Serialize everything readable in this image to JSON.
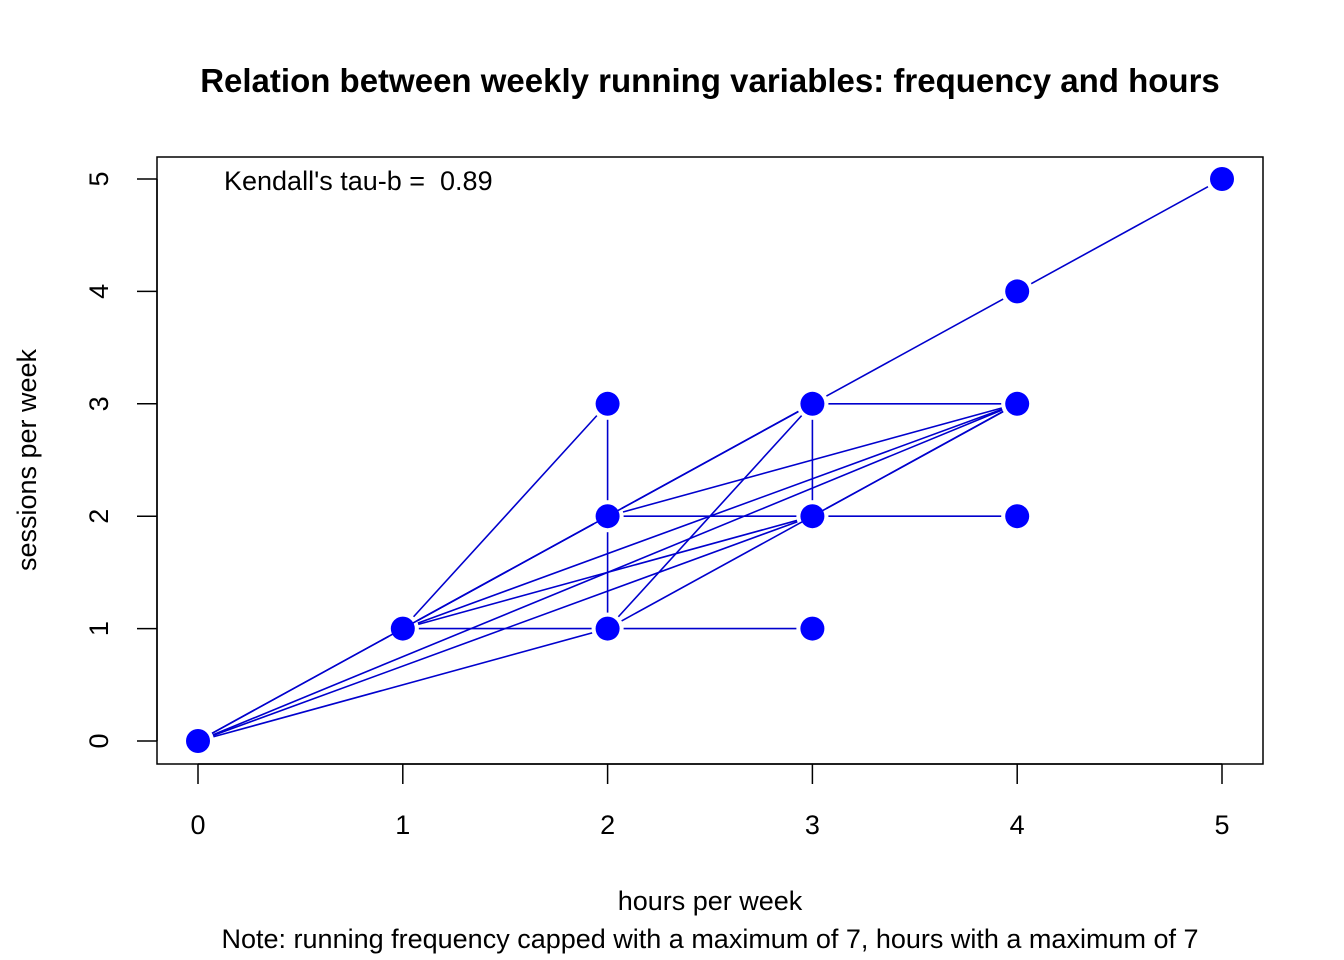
{
  "chart_data": {
    "type": "scatter",
    "title": "Relation between weekly running variables: frequency and hours",
    "xlabel": "hours per week",
    "ylabel": "sessions per week",
    "note": "Note: running frequency capped with a maximum of 7, hours with a maximum of 7",
    "annotation": "Kendall's tau-b =  0.89",
    "xlim": [
      -0.2,
      5.2
    ],
    "ylim": [
      -0.2,
      5.2
    ],
    "x_ticks": [
      "0",
      "1",
      "2",
      "3",
      "4",
      "5"
    ],
    "y_ticks": [
      "0",
      "1",
      "2",
      "3",
      "4",
      "5"
    ],
    "grid": false,
    "colors": {
      "points": "#0000ff",
      "lines": "#0000cd"
    },
    "points": [
      {
        "x": 0,
        "y": 0
      },
      {
        "x": 1,
        "y": 1
      },
      {
        "x": 2,
        "y": 1
      },
      {
        "x": 2,
        "y": 2
      },
      {
        "x": 2,
        "y": 3
      },
      {
        "x": 3,
        "y": 1
      },
      {
        "x": 3,
        "y": 2
      },
      {
        "x": 3,
        "y": 3
      },
      {
        "x": 4,
        "y": 2
      },
      {
        "x": 4,
        "y": 3
      },
      {
        "x": 4,
        "y": 4
      },
      {
        "x": 5,
        "y": 5
      }
    ],
    "connections": [
      [
        [
          0,
          0
        ],
        [
          1,
          1
        ]
      ],
      [
        [
          0,
          0
        ],
        [
          2,
          1
        ]
      ],
      [
        [
          0,
          0
        ],
        [
          2,
          2
        ]
      ],
      [
        [
          0,
          0
        ],
        [
          3,
          2
        ]
      ],
      [
        [
          0,
          0
        ],
        [
          4,
          3
        ]
      ],
      [
        [
          1,
          1
        ],
        [
          2,
          1
        ]
      ],
      [
        [
          1,
          1
        ],
        [
          2,
          2
        ]
      ],
      [
        [
          1,
          1
        ],
        [
          2,
          3
        ]
      ],
      [
        [
          1,
          1
        ],
        [
          3,
          2
        ]
      ],
      [
        [
          1,
          1
        ],
        [
          4,
          3
        ]
      ],
      [
        [
          1,
          1
        ],
        [
          3,
          3
        ]
      ],
      [
        [
          2,
          1
        ],
        [
          3,
          1
        ]
      ],
      [
        [
          2,
          1
        ],
        [
          2,
          2
        ]
      ],
      [
        [
          2,
          1
        ],
        [
          3,
          3
        ]
      ],
      [
        [
          2,
          1
        ],
        [
          4,
          3
        ]
      ],
      [
        [
          2,
          2
        ],
        [
          2,
          3
        ]
      ],
      [
        [
          2,
          2
        ],
        [
          3,
          2
        ]
      ],
      [
        [
          2,
          2
        ],
        [
          3,
          3
        ]
      ],
      [
        [
          2,
          2
        ],
        [
          4,
          3
        ]
      ],
      [
        [
          3,
          2
        ],
        [
          3,
          3
        ]
      ],
      [
        [
          3,
          2
        ],
        [
          4,
          2
        ]
      ],
      [
        [
          3,
          2
        ],
        [
          4,
          3
        ]
      ],
      [
        [
          3,
          3
        ],
        [
          4,
          3
        ]
      ],
      [
        [
          3,
          3
        ],
        [
          4,
          4
        ]
      ],
      [
        [
          4,
          4
        ],
        [
          5,
          5
        ]
      ]
    ]
  }
}
